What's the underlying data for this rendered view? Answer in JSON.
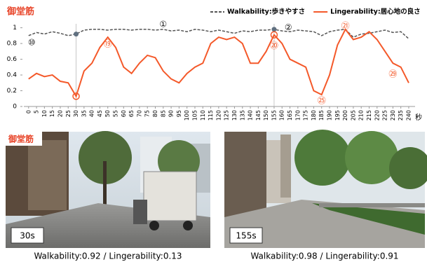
{
  "chart_data": {
    "type": "line",
    "title": "御堂筋",
    "x_unit": "秒",
    "x": [
      0,
      5,
      10,
      15,
      20,
      25,
      30,
      35,
      40,
      45,
      50,
      55,
      60,
      65,
      70,
      75,
      80,
      85,
      90,
      95,
      100,
      105,
      110,
      115,
      120,
      125,
      130,
      135,
      140,
      145,
      150,
      155,
      160,
      165,
      170,
      175,
      180,
      185,
      190,
      195,
      200,
      205,
      210,
      215,
      220,
      225,
      230,
      235,
      240
    ],
    "xlim": [
      -3,
      244
    ],
    "xticks": [
      0,
      5,
      10,
      15,
      20,
      25,
      30,
      35,
      40,
      45,
      50,
      55,
      60,
      65,
      70,
      75,
      80,
      85,
      90,
      95,
      100,
      105,
      110,
      115,
      120,
      125,
      130,
      135,
      140,
      145,
      150,
      155,
      160,
      165,
      170,
      175,
      180,
      185,
      190,
      195,
      200,
      205,
      210,
      215,
      220,
      225,
      230,
      235,
      240
    ],
    "ylim": [
      0,
      1.05
    ],
    "yticks": [
      0,
      0.2,
      0.4,
      0.6,
      0.8,
      1
    ],
    "highlights": [
      30,
      155
    ],
    "series": [
      {
        "name": "Walkability:歩きやすさ",
        "color": "#555555",
        "dash": true,
        "values": [
          0.9,
          0.94,
          0.92,
          0.95,
          0.93,
          0.9,
          0.92,
          0.97,
          0.98,
          0.98,
          0.97,
          0.98,
          0.98,
          0.97,
          0.98,
          0.98,
          0.97,
          0.98,
          0.96,
          0.97,
          0.95,
          0.98,
          0.97,
          0.95,
          0.97,
          0.95,
          0.93,
          0.96,
          0.95,
          0.97,
          0.97,
          0.98,
          0.96,
          0.95,
          0.97,
          0.96,
          0.95,
          0.9,
          0.95,
          0.97,
          0.98,
          0.88,
          0.92,
          0.93,
          0.95,
          0.97,
          0.94,
          0.95,
          0.86
        ]
      },
      {
        "name": "Lingerability:居心地の良さ",
        "color": "#f4592a",
        "dash": false,
        "values": [
          0.35,
          0.42,
          0.38,
          0.4,
          0.32,
          0.3,
          0.13,
          0.45,
          0.55,
          0.75,
          0.88,
          0.75,
          0.5,
          0.42,
          0.55,
          0.65,
          0.62,
          0.45,
          0.35,
          0.3,
          0.42,
          0.5,
          0.55,
          0.8,
          0.88,
          0.85,
          0.88,
          0.8,
          0.55,
          0.55,
          0.7,
          0.91,
          0.8,
          0.6,
          0.55,
          0.5,
          0.2,
          0.15,
          0.4,
          0.78,
          0.98,
          0.85,
          0.88,
          0.95,
          0.85,
          0.7,
          0.55,
          0.5,
          0.3
        ]
      }
    ],
    "annotations": [
      {
        "label": "⑩",
        "x": 2,
        "y": 0.81,
        "color": "#111111"
      },
      {
        "label": "①",
        "x": 85,
        "y": 1.04,
        "color": "#111111"
      },
      {
        "label": "②",
        "x": 164,
        "y": 1.0,
        "color": "#111111"
      },
      {
        "label": "⑲",
        "x": 50,
        "y": 0.79,
        "color": "#f4592a"
      },
      {
        "label": "⑳",
        "x": 155,
        "y": 0.77,
        "color": "#f4592a"
      },
      {
        "label": "㉑",
        "x": 200,
        "y": 1.02,
        "color": "#f4592a"
      },
      {
        "label": "㉕",
        "x": 185,
        "y": 0.07,
        "color": "#f4592a"
      },
      {
        "label": "㉙",
        "x": 230,
        "y": 0.41,
        "color": "#f4592a"
      }
    ]
  },
  "photos": [
    {
      "badge": "御堂筋",
      "time": "30s",
      "caption": "Walkability:0.92  /  Lingerability:0.13"
    },
    {
      "time": "155s",
      "caption": "Walkability:0.98  /  Lingerability:0.91"
    }
  ]
}
